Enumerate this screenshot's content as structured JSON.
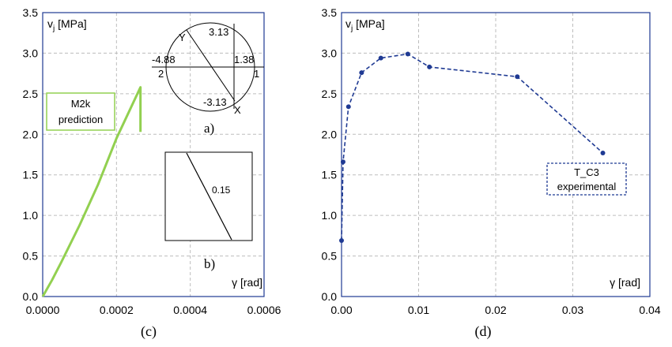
{
  "chart_data": [
    {
      "type": "line",
      "xlim": [
        0,
        0.0006
      ],
      "ylim": [
        0,
        3.5
      ],
      "x_ticks": [
        "0.0000",
        "0.0002",
        "0.0004",
        "0.0006"
      ],
      "y_ticks": [
        "0.0",
        "0.5",
        "1.0",
        "1.5",
        "2.0",
        "2.5",
        "3.0",
        "3.5"
      ],
      "ylabel_main": "v",
      "ylabel_sub": "j",
      "ylabel_unit": " [MPa]",
      "xlabel": "γ [rad]",
      "caption": "(c)",
      "grid": true,
      "series": [
        {
          "color": "#92d050",
          "points": [
            [
              0.0,
              0.0
            ],
            [
              2.5e-05,
              0.2
            ],
            [
              5e-05,
              0.42
            ],
            [
              0.0001,
              0.88
            ],
            [
              0.00015,
              1.38
            ],
            [
              0.0002,
              1.95
            ],
            [
              0.000265,
              2.58
            ],
            [
              0.000265,
              2.03
            ]
          ]
        }
      ],
      "annotation": {
        "lines": [
          "M2k",
          "prediction"
        ],
        "color": "#92d050"
      },
      "inset_a": {
        "labels": {
          "y": "Y",
          "x": "X",
          "top": "3.13",
          "bottom": "-3.13",
          "left": "-4.88",
          "right": "1.38",
          "pt2": "2",
          "pt1": "1"
        },
        "caption": "a)"
      },
      "inset_b": {
        "value": "0.15",
        "caption": "b)"
      }
    },
    {
      "type": "line",
      "xlim": [
        0,
        0.04
      ],
      "ylim": [
        0,
        3.5
      ],
      "x_ticks": [
        "0.00",
        "0.01",
        "0.02",
        "0.03",
        "0.04"
      ],
      "y_ticks": [
        "0.0",
        "0.5",
        "1.0",
        "1.5",
        "2.0",
        "2.5",
        "3.0",
        "3.5"
      ],
      "ylabel_main": "v",
      "ylabel_sub": "j",
      "ylabel_unit": " [MPa]",
      "xlabel": "γ [rad]",
      "caption": "(d)",
      "grid": true,
      "series": [
        {
          "color": "#1f3a93",
          "points": [
            [
              0.0,
              0.69
            ],
            [
              0.0002,
              1.66
            ],
            [
              0.0009,
              2.34
            ],
            [
              0.0026,
              2.76
            ],
            [
              0.0051,
              2.94
            ],
            [
              0.0086,
              2.99
            ],
            [
              0.0114,
              2.83
            ],
            [
              0.0228,
              2.71
            ],
            [
              0.0339,
              1.77
            ]
          ]
        }
      ],
      "annotation": {
        "lines": [
          "T_C3",
          "experimental"
        ],
        "color": "#1f3a93"
      }
    }
  ]
}
